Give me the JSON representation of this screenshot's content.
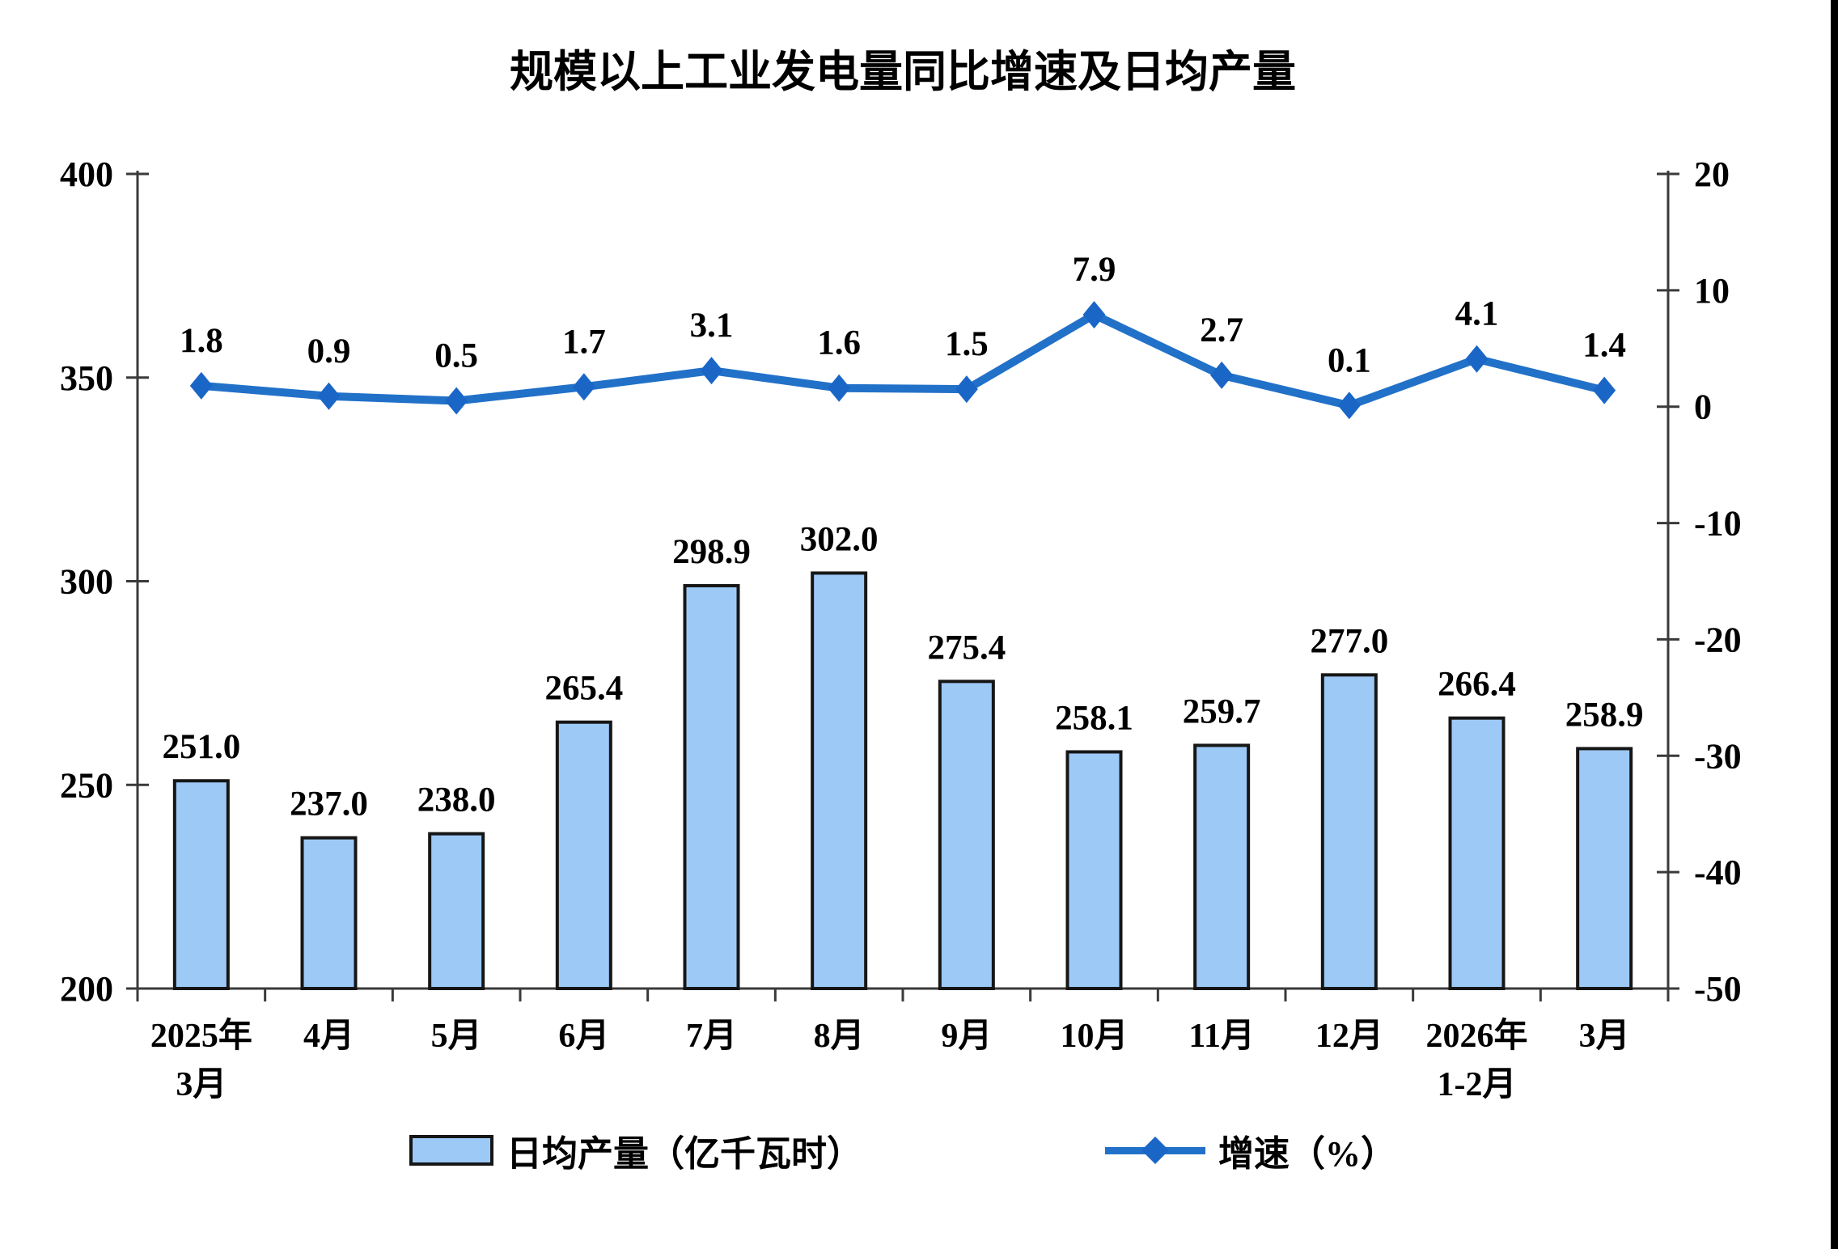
{
  "chart_data": {
    "type": "bar+line",
    "title": "规模以上工业发电量同比增速及日均产量",
    "categories": [
      [
        "2025年",
        "3月"
      ],
      [
        "4月"
      ],
      [
        "5月"
      ],
      [
        "6月"
      ],
      [
        "7月"
      ],
      [
        "8月"
      ],
      [
        "9月"
      ],
      [
        "10月"
      ],
      [
        "11月"
      ],
      [
        "12月"
      ],
      [
        "2026年",
        "1-2月"
      ],
      [
        "3月"
      ]
    ],
    "series": [
      {
        "name": "日均产量（亿千瓦时）",
        "type": "bar",
        "axis": "left",
        "values": [
          251.0,
          237.0,
          238.0,
          265.4,
          298.9,
          302.0,
          275.4,
          258.1,
          259.7,
          277.0,
          266.4,
          258.9
        ]
      },
      {
        "name": "增速（%）",
        "type": "line",
        "axis": "right",
        "values": [
          1.8,
          0.9,
          0.5,
          1.7,
          3.1,
          1.6,
          1.5,
          7.9,
          2.7,
          0.1,
          4.1,
          1.4
        ]
      }
    ],
    "left_axis": {
      "min": 200,
      "max": 400,
      "ticks": [
        400,
        350,
        300,
        250,
        200
      ]
    },
    "right_axis": {
      "min": -50,
      "max": 20,
      "ticks": [
        20,
        10,
        0,
        -10,
        -20,
        -30,
        -40,
        -50
      ]
    },
    "grid": "off",
    "legend_position": "bottom",
    "value_labels": "on",
    "colors": {
      "bar_fill": "#9DC9F7",
      "bar_border": "#161616",
      "line": "#2271C8",
      "marker": "#1A66C6",
      "axis": "#3A3A3A",
      "text": "#000000"
    }
  }
}
